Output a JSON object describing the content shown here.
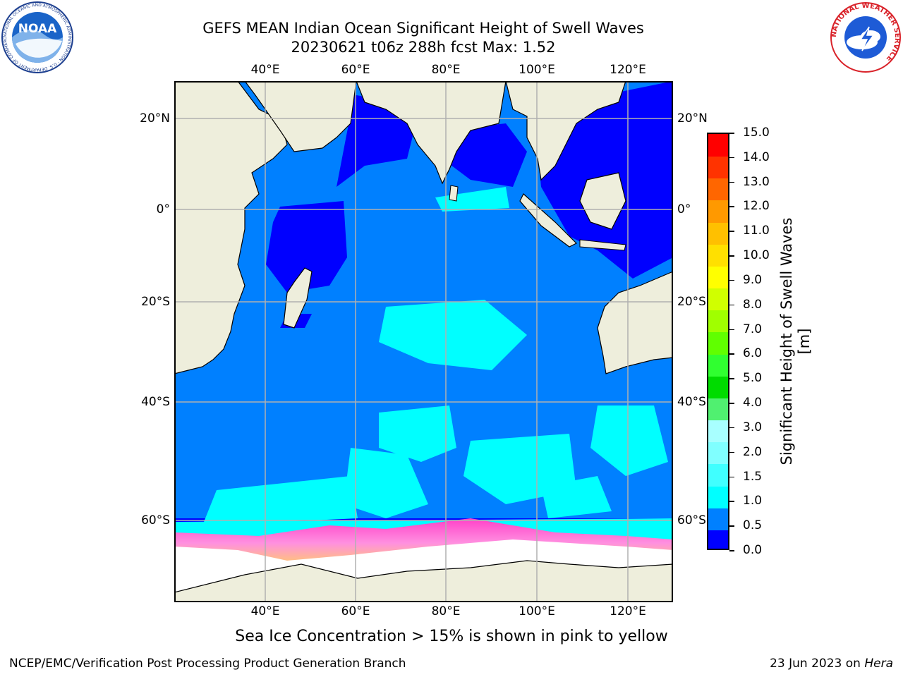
{
  "header": {
    "title": "GEFS MEAN Indian Ocean Significant Height of Swell Waves",
    "subtitle": "20230621 t06z 288h fcst   Max: 1.52"
  },
  "map": {
    "longitude_ticks": [
      "40°E",
      "60°E",
      "80°E",
      "100°E",
      "120°E"
    ],
    "latitude_ticks": [
      "20°N",
      "0°",
      "20°S",
      "40°S",
      "60°S"
    ],
    "extent": {
      "lon_min": 20,
      "lon_max": 130,
      "lat_min": -72,
      "lat_max": 28
    },
    "colors": {
      "land": "#eeeedc",
      "sea_ice": "#ffffff",
      "grid": "#b0b0b0",
      "coast": "#000000"
    }
  },
  "colorbar": {
    "title": "Significant Height of Swell Waves [m]",
    "labels": [
      "0.0",
      "0.5",
      "1.0",
      "1.5",
      "2.0",
      "3.0",
      "4.0",
      "5.0",
      "6.0",
      "7.0",
      "8.0",
      "9.0",
      "10.0",
      "11.0",
      "12.0",
      "13.0",
      "14.0",
      "15.0"
    ],
    "colors": [
      "#0000ff",
      "#0080ff",
      "#00ffff",
      "#40ffff",
      "#80ffff",
      "#a8ffff",
      "#50f070",
      "#00dc00",
      "#30ff30",
      "#60ff00",
      "#a0ff00",
      "#d0ff00",
      "#ffff00",
      "#ffe000",
      "#ffc000",
      "#ff9900",
      "#ff6600",
      "#ff3300",
      "#ff0000"
    ]
  },
  "footer": {
    "note": "Sea Ice Concentration > 15% is shown in pink to yellow",
    "credit": "NCEP/EMC/Verification Post Processing Product Generation Branch",
    "date": "23 Jun 2023 on",
    "host": "Hera"
  },
  "logos": {
    "left": {
      "text": "NOAA",
      "ring": "NATIONAL OCEANIC AND ATMOSPHERIC ADMINISTRATION · U.S. DEPARTMENT OF COMMERCE"
    },
    "right": {
      "ring": "NATIONAL WEATHER SERVICE"
    }
  }
}
